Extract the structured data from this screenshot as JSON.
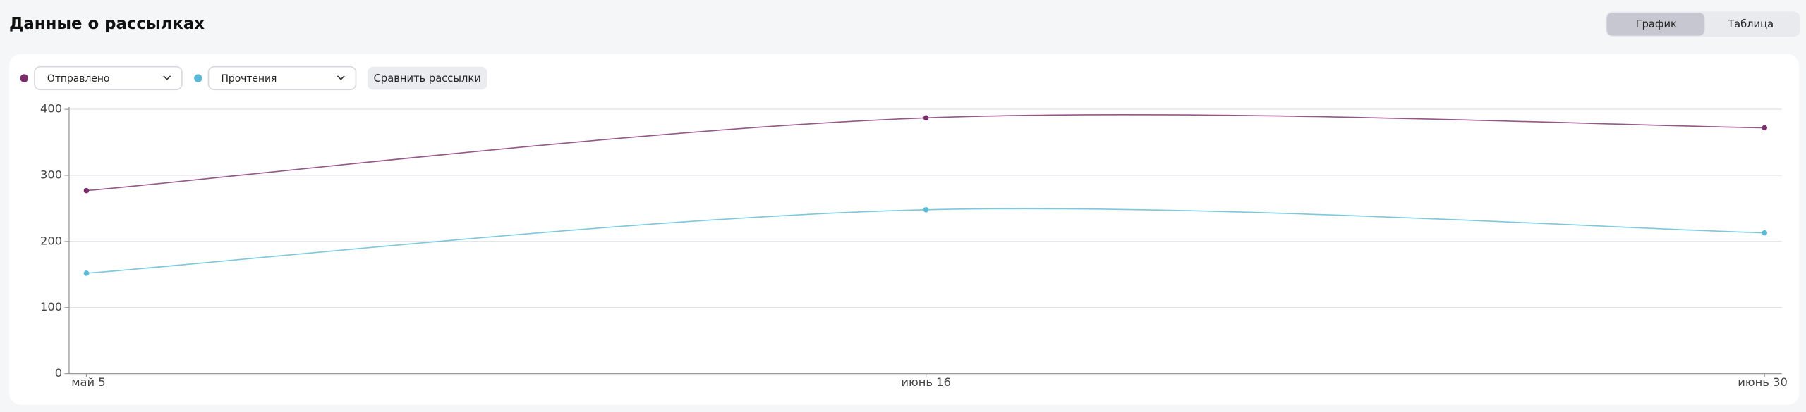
{
  "header": {
    "title": "Данные о рассылках"
  },
  "view_toggle": {
    "options": [
      "График",
      "Таблица"
    ]
  },
  "compare_button": "Сравнить рассылки",
  "chart_data": {
    "type": "line",
    "categories": [
      "май 5",
      "июнь 16",
      "июнь 30"
    ],
    "series": [
      {
        "name": "Отправлено",
        "color": "#7b2d6b",
        "values": [
          277,
          387,
          372
        ]
      },
      {
        "name": "Прочтения",
        "color": "#5bbad5",
        "values": [
          152,
          248,
          213
        ]
      }
    ],
    "ylim": [
      0,
      400
    ],
    "yticks": [
      0,
      100,
      200,
      300,
      400
    ],
    "grid": true
  }
}
